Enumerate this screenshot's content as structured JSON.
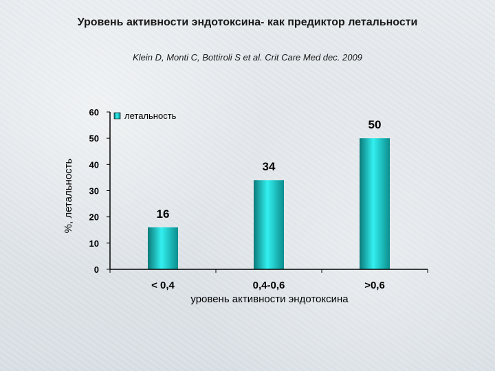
{
  "slide": {
    "title": "Уровень активности эндотоксина- как предиктор летальности",
    "citation": "Klein D, Monti C, Bottiroli S et al. Crit Care Med dec. 2009"
  },
  "colors": {
    "bar_light": "#33f0f0",
    "bar_dark": "#0b7a7a",
    "axis": "#000000"
  },
  "chart_data": {
    "type": "bar",
    "categories": [
      "< 0,4",
      "0,4-0,6",
      ">0,6"
    ],
    "series": [
      {
        "name": "летальность",
        "values": [
          16,
          34,
          50
        ]
      }
    ],
    "data_labels": [
      "16",
      "34",
      "50"
    ],
    "xlabel": "уровень активности эндотоксина",
    "ylabel": "%, летальность",
    "ylim": [
      0,
      60
    ],
    "yticks": [
      0,
      10,
      20,
      30,
      40,
      50,
      60
    ],
    "legend_position": "top-left",
    "grid": false
  }
}
